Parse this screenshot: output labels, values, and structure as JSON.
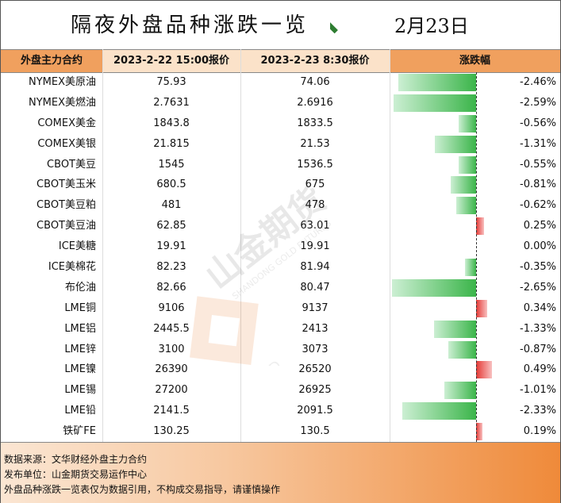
{
  "title": "隔夜外盘品种涨跌一览",
  "date": "2月23日",
  "headers": {
    "name": "外盘主力合约",
    "prev": "2023-2-22 15:00报价",
    "curr": "2023-2-23 8:30报价",
    "change": "涨跌幅"
  },
  "rows": [
    {
      "name": "NYMEX美原油",
      "prev": "75.93",
      "curr": "74.06",
      "pct": "-2.46%",
      "value": -2.46
    },
    {
      "name": "NYMEX美燃油",
      "prev": "2.7631",
      "curr": "2.6916",
      "pct": "-2.59%",
      "value": -2.59
    },
    {
      "name": "COMEX美金",
      "prev": "1843.8",
      "curr": "1833.5",
      "pct": "-0.56%",
      "value": -0.56
    },
    {
      "name": "COMEX美银",
      "prev": "21.815",
      "curr": "21.53",
      "pct": "-1.31%",
      "value": -1.31
    },
    {
      "name": "CBOT美豆",
      "prev": "1545",
      "curr": "1536.5",
      "pct": "-0.55%",
      "value": -0.55
    },
    {
      "name": "CBOT美玉米",
      "prev": "680.5",
      "curr": "675",
      "pct": "-0.81%",
      "value": -0.81
    },
    {
      "name": "CBOT美豆粕",
      "prev": "481",
      "curr": "478",
      "pct": "-0.62%",
      "value": -0.62
    },
    {
      "name": "CBOT美豆油",
      "prev": "62.85",
      "curr": "63.01",
      "pct": "0.25%",
      "value": 0.25
    },
    {
      "name": "ICE美糖",
      "prev": "19.91",
      "curr": "19.91",
      "pct": "0.00%",
      "value": 0.0
    },
    {
      "name": "ICE美棉花",
      "prev": "82.23",
      "curr": "81.94",
      "pct": "-0.35%",
      "value": -0.35
    },
    {
      "name": "布伦油",
      "prev": "82.66",
      "curr": "80.47",
      "pct": "-2.65%",
      "value": -2.65
    },
    {
      "name": "LME铜",
      "prev": "9106",
      "curr": "9137",
      "pct": "0.34%",
      "value": 0.34
    },
    {
      "name": "LME铝",
      "prev": "2445.5",
      "curr": "2413",
      "pct": "-1.33%",
      "value": -1.33
    },
    {
      "name": "LME锌",
      "prev": "3100",
      "curr": "3073",
      "pct": "-0.87%",
      "value": -0.87
    },
    {
      "name": "LME镍",
      "prev": "26390",
      "curr": "26520",
      "pct": "0.49%",
      "value": 0.49
    },
    {
      "name": "LME锡",
      "prev": "27200",
      "curr": "26925",
      "pct": "-1.01%",
      "value": -1.01
    },
    {
      "name": "LME铅",
      "prev": "2141.5",
      "curr": "2091.5",
      "pct": "-2.33%",
      "value": -2.33
    },
    {
      "name": "铁矿FE",
      "prev": "130.25",
      "curr": "130.5",
      "pct": "0.19%",
      "value": 0.19
    }
  ],
  "footer": {
    "source": "数据来源：文华财经外盘主力合约",
    "publisher": "发布单位：山金期货交易运作中心",
    "disclaimer": "外盘品种涨跌一览表仅为数据引用，不构成交易指导，请谨慎操作"
  },
  "watermark": {
    "brand": "山金期货",
    "en": "SHANDONG GOLD FUTURES",
    "mark": "SD-GOLD"
  },
  "colors": {
    "header_orange": "#f0a05e",
    "header_light": "#fbe2c9",
    "down": "#3bb54a",
    "up": "#e53935"
  }
}
